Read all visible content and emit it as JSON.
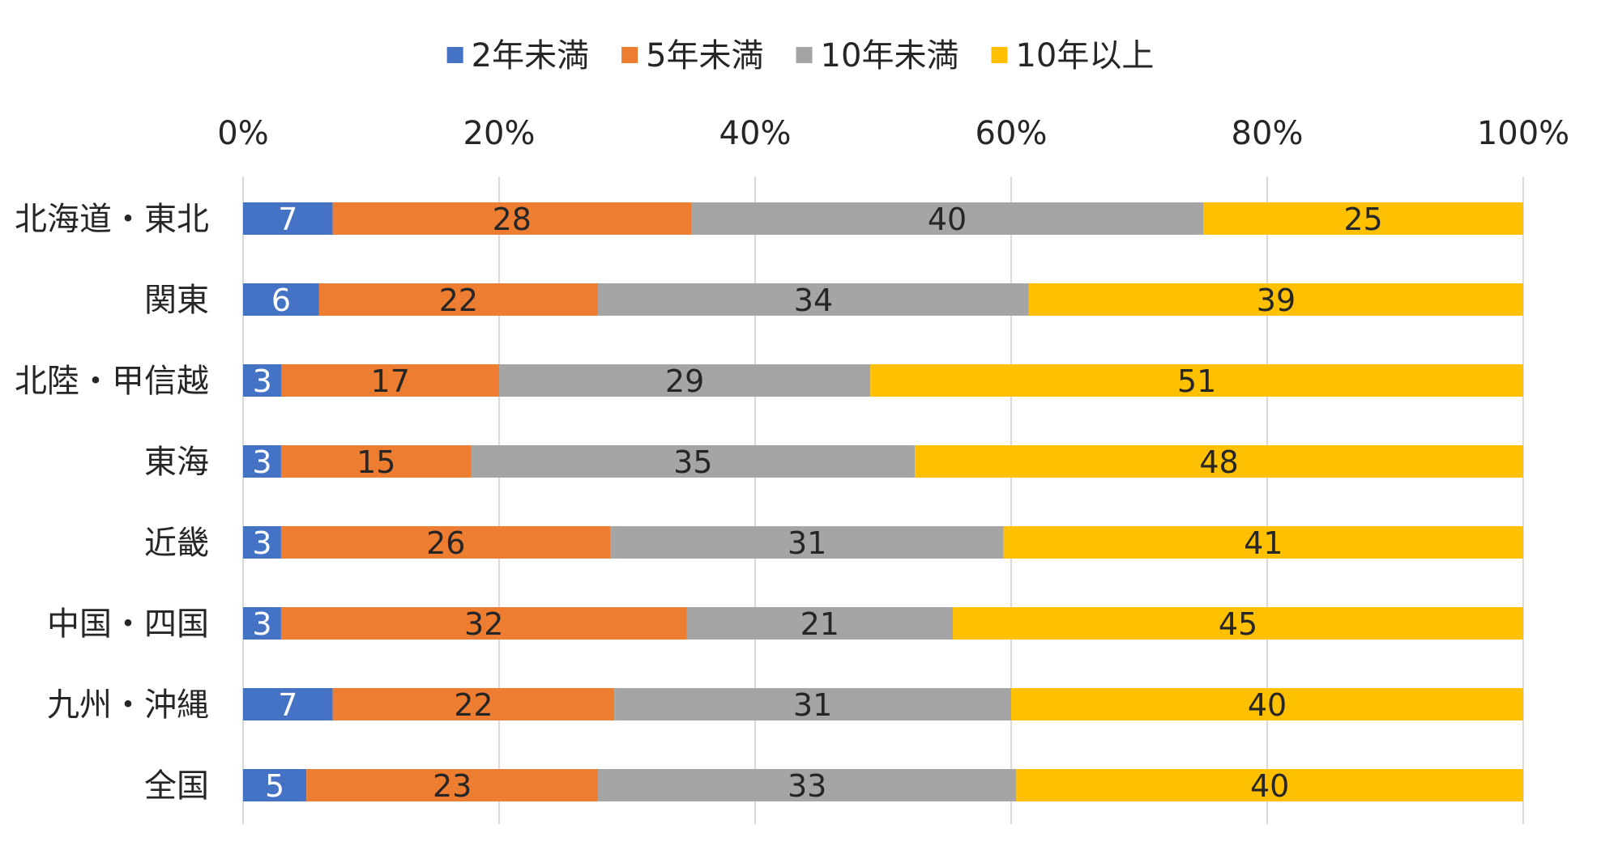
{
  "chart_data": {
    "type": "bar",
    "orientation": "horizontal",
    "stacked": "percent",
    "categories": [
      "北海道・東北",
      "関東",
      "北陸・甲信越",
      "東海",
      "近畿",
      "中国・四国",
      "九州・沖縄",
      "全国"
    ],
    "series": [
      {
        "name": "2年未満",
        "color": "#4472C4",
        "label_color": "#ffffff",
        "values": [
          7,
          6,
          3,
          3,
          3,
          3,
          7,
          5
        ]
      },
      {
        "name": "5年未満",
        "color": "#ED7D31",
        "label_color": "#262626",
        "values": [
          28,
          22,
          17,
          15,
          26,
          32,
          22,
          23
        ]
      },
      {
        "name": "10年未満",
        "color": "#A5A5A5",
        "label_color": "#262626",
        "values": [
          40,
          34,
          29,
          35,
          31,
          21,
          31,
          33
        ]
      },
      {
        "name": "10年以上",
        "color": "#FFC000",
        "label_color": "#262626",
        "values": [
          25,
          39,
          51,
          48,
          41,
          45,
          40,
          40
        ]
      }
    ],
    "x_ticks": [
      "0%",
      "20%",
      "40%",
      "60%",
      "80%",
      "100%"
    ],
    "xlim": [
      0,
      100
    ],
    "x_axis_position": "top",
    "grid": true,
    "legend_position": "top",
    "title": "",
    "xlabel": "",
    "ylabel": ""
  }
}
